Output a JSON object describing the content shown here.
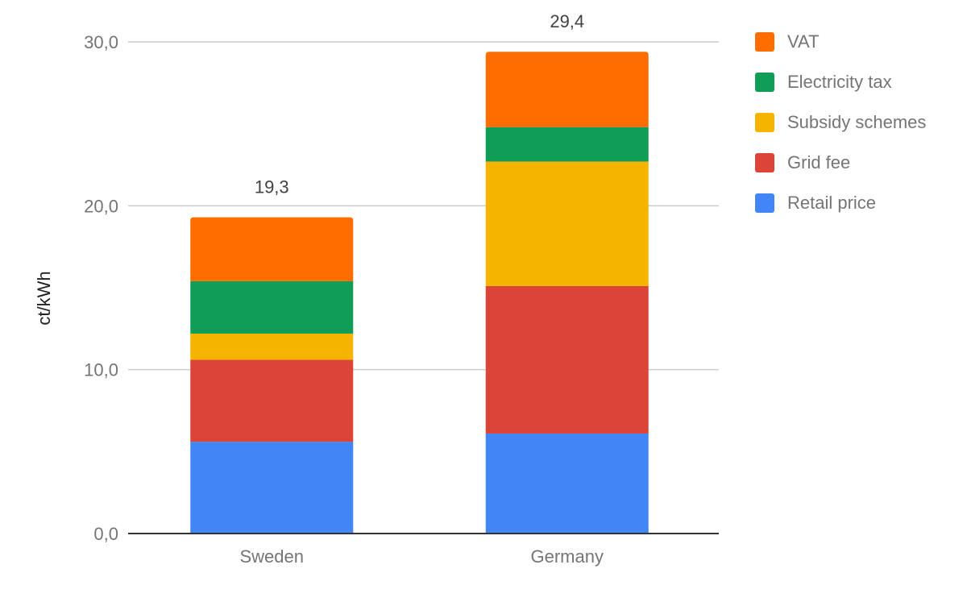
{
  "chart_data": {
    "type": "bar",
    "stacked": true,
    "title": "",
    "xlabel": "",
    "ylabel": "ct/kWh",
    "ylim": [
      0,
      30
    ],
    "yticks": [
      0,
      10,
      20,
      30
    ],
    "ytick_labels": [
      "0,0",
      "10,0",
      "20,0",
      "30,0"
    ],
    "grid": true,
    "legend_position": "right",
    "categories": [
      "Sweden",
      "Germany"
    ],
    "totals": [
      19.3,
      29.4
    ],
    "total_labels": [
      "19,3",
      "29,4"
    ],
    "series": [
      {
        "name": "Retail price",
        "color": "#4285f4",
        "values": [
          5.6,
          6.1
        ]
      },
      {
        "name": "Grid fee",
        "color": "#db4437",
        "values": [
          5.0,
          9.0
        ]
      },
      {
        "name": "Subsidy schemes",
        "color": "#f4b400",
        "values": [
          1.6,
          7.6
        ]
      },
      {
        "name": "Electricity tax",
        "color": "#0f9d58",
        "values": [
          3.2,
          2.1
        ]
      },
      {
        "name": "VAT",
        "color": "#ff6d00",
        "values": [
          3.9,
          4.6
        ]
      }
    ]
  },
  "legend": [
    {
      "label": "VAT",
      "color": "#ff6d00"
    },
    {
      "label": "Electricity tax",
      "color": "#0f9d58"
    },
    {
      "label": "Subsidy schemes",
      "color": "#f4b400"
    },
    {
      "label": "Grid fee",
      "color": "#db4437"
    },
    {
      "label": "Retail price",
      "color": "#4285f4"
    }
  ]
}
